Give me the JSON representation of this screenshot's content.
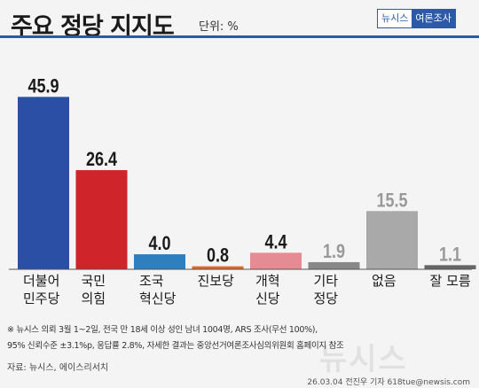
{
  "header": {
    "title": "주요 정당 지지도",
    "unit": "단위: %",
    "brand": "뉴시스",
    "brand_sub": "여론조사"
  },
  "chart_data": {
    "type": "bar",
    "categories": [
      [
        "더불어",
        "민주당"
      ],
      [
        "국민",
        "의힘"
      ],
      [
        "조국",
        "혁신당"
      ],
      [
        "진보당"
      ],
      [
        "개혁",
        "신당"
      ],
      [
        "기타",
        "정당"
      ],
      [
        "없음"
      ],
      [
        "잘 모름"
      ]
    ],
    "values": [
      45.9,
      26.4,
      4.0,
      0.8,
      4.4,
      1.9,
      15.5,
      1.1
    ],
    "value_labels": [
      "45.9",
      "26.4",
      "4.0",
      "0.8",
      "4.4",
      "1.9",
      "15.5",
      "1.1"
    ],
    "colors": [
      "#2a4fa5",
      "#d0242b",
      "#2d7fc0",
      "#e0672a",
      "#e68a93",
      "#888888",
      "#a9a9a9",
      "#666666"
    ],
    "label_colors": [
      "#1a1a1a",
      "#1a1a1a",
      "#1a1a1a",
      "#1a1a1a",
      "#1a1a1a",
      "#999999",
      "#999999",
      "#999999"
    ],
    "ylim": [
      0,
      50
    ],
    "grid": false,
    "title": "주요 정당 지지도",
    "xlabel": "",
    "ylabel": ""
  },
  "footnote": {
    "line1": "※ 뉴시스 의뢰 3월 1~2일, 전국 만 18세 이상 성인 남녀 1004명, ARS 조사(무선 100%),",
    "line2": "95% 신뢰수준 ±3.1%p, 응답률 2.8%, 자세한 결과는 중앙선거여론조사심의위원회 홈페이지 참조"
  },
  "source": "자료: 뉴시스, 에이스리서치",
  "credit": "26.03.04 전진우 기자 618tue@newsis.com",
  "watermark": "뉴시스"
}
